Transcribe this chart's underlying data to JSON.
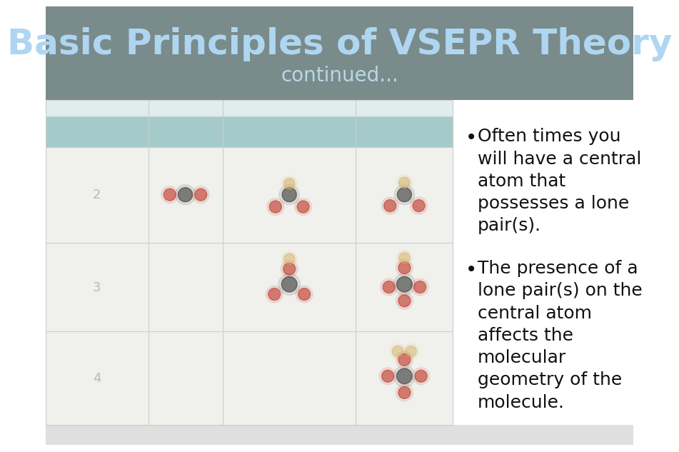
{
  "title": "Basic Principles of VSEPR Theory",
  "subtitle": "continued...",
  "title_color": "#aed6f1",
  "subtitle_color": "#b8d8e8",
  "header_bg_color": "#7a8b8b",
  "body_bg_color": "#ffffff",
  "bullet1": "Often times you\nwill have a central\natom that\npossesses a lone\npair(s).",
  "bullet2": "The presence of a\nlone pair(s) on the\ncentral atom\naffects the\nmolecular\ngeometry of the\nmolecule.",
  "bullet_color": "#111111",
  "table_bg": "#f0f0ec",
  "table_teal_header": "#8bbfbf",
  "table_light_header": "#d0e8e8",
  "grid_color": "#cccccc",
  "bottom_bar_color": "#b0b0b0"
}
